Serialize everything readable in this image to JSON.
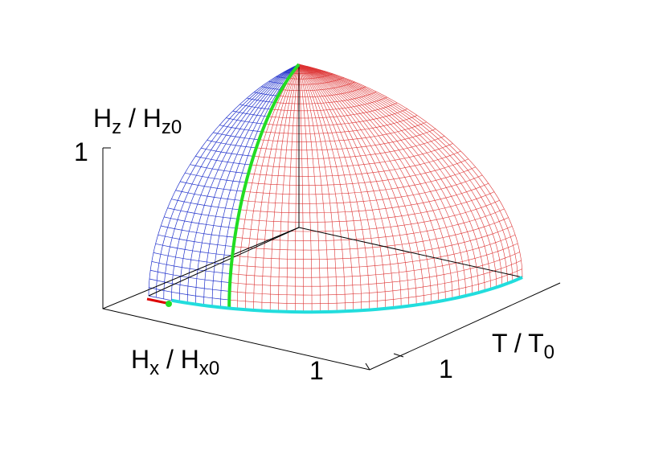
{
  "figure": {
    "z_axis": {
      "label": [
        "H",
        "z",
        " / H",
        "z0"
      ],
      "tick": "1"
    },
    "x_axis": {
      "label": [
        "H",
        "x",
        " / H",
        "x0"
      ],
      "tick": "1"
    },
    "t_axis": {
      "label": [
        "T / T",
        "0"
      ],
      "tick": "1"
    }
  }
}
